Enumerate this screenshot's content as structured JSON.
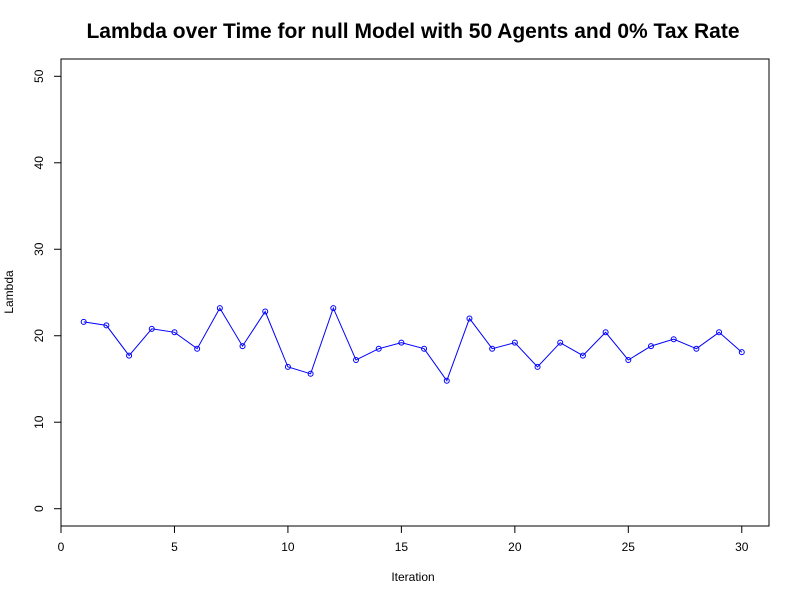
{
  "chart_data": {
    "type": "line",
    "title": "Lambda over Time for null Model with 50 Agents and 0% Tax Rate",
    "xlabel": "Iteration",
    "ylabel": "Lambda",
    "xlim": [
      0,
      31.2
    ],
    "ylim": [
      -2,
      52
    ],
    "xticks": [
      "0",
      "5",
      "10",
      "15",
      "20",
      "25",
      "30"
    ],
    "yticks": [
      "0",
      "10",
      "20",
      "30",
      "40",
      "50"
    ],
    "grid": false,
    "line_color": "#0000ff",
    "x": [
      1,
      2,
      3,
      4,
      5,
      6,
      7,
      8,
      9,
      10,
      11,
      12,
      13,
      14,
      15,
      16,
      17,
      18,
      19,
      20,
      21,
      22,
      23,
      24,
      25,
      26,
      27,
      28,
      29,
      30
    ],
    "values": [
      21.6,
      21.2,
      17.7,
      20.8,
      20.4,
      18.5,
      23.2,
      18.8,
      22.8,
      16.4,
      15.6,
      23.2,
      17.2,
      18.5,
      19.2,
      18.5,
      14.8,
      22.0,
      18.5,
      19.2,
      16.4,
      19.2,
      17.7,
      20.4,
      17.2,
      18.8,
      19.6,
      18.5,
      20.4,
      18.1
    ]
  }
}
